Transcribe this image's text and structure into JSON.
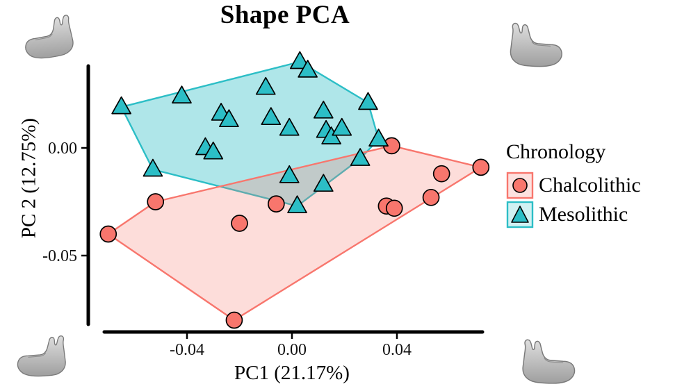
{
  "title": "Shape PCA",
  "axes": {
    "x_label": "PC1 (21.17%)",
    "y_label": "PC 2 (12.75%)"
  },
  "legend": {
    "title": "Chronology",
    "items": [
      {
        "label": "Chalcolithic",
        "marker": "circle",
        "color": "#F8766D"
      },
      {
        "label": "Mesolithic",
        "marker": "triangle",
        "color": "#2CBEC6"
      }
    ]
  },
  "chart_data": {
    "type": "scatter",
    "title": "Shape PCA",
    "xlabel": "PC1 (21.17%)",
    "ylabel": "PC 2 (12.75%)",
    "xlim": [
      -0.075,
      0.078
    ],
    "ylim": [
      -0.085,
      0.045
    ],
    "x_ticks": [
      -0.04,
      0,
      0.04
    ],
    "y_ticks": [
      0,
      -0.05
    ],
    "legend_title": "Chronology",
    "grid": false,
    "hulls": true,
    "series": [
      {
        "name": "Chalcolithic",
        "marker": "circle",
        "color": "#F8766D",
        "hull_opacity": 0.25,
        "points": [
          [
            -0.07,
            -0.04
          ],
          [
            -0.052,
            -0.025
          ],
          [
            -0.02,
            -0.035
          ],
          [
            -0.006,
            -0.026
          ],
          [
            -0.022,
            -0.08
          ],
          [
            0.038,
            0.001
          ],
          [
            0.036,
            -0.027
          ],
          [
            0.039,
            -0.028
          ],
          [
            0.053,
            -0.023
          ],
          [
            0.057,
            -0.012
          ],
          [
            0.072,
            -0.009
          ]
        ]
      },
      {
        "name": "Mesolithic",
        "marker": "triangle",
        "color": "#2CBEC6",
        "hull_opacity": 0.38,
        "points": [
          [
            -0.065,
            0.019
          ],
          [
            -0.042,
            0.024
          ],
          [
            -0.027,
            0.016
          ],
          [
            -0.024,
            0.013
          ],
          [
            -0.01,
            0.028
          ],
          [
            0.003,
            0.04
          ],
          [
            0.006,
            0.036
          ],
          [
            -0.008,
            0.014
          ],
          [
            -0.001,
            0.009
          ],
          [
            0.012,
            0.017
          ],
          [
            0.013,
            0.008
          ],
          [
            0.015,
            0.005
          ],
          [
            0.019,
            0.009
          ],
          [
            0.029,
            0.021
          ],
          [
            0.026,
            -0.005
          ],
          [
            0.033,
            0.004
          ],
          [
            -0.033,
            0.0
          ],
          [
            -0.03,
            -0.002
          ],
          [
            -0.053,
            -0.01
          ],
          [
            -0.001,
            -0.013
          ],
          [
            0.002,
            -0.027
          ],
          [
            0.012,
            -0.017
          ]
        ]
      }
    ]
  }
}
